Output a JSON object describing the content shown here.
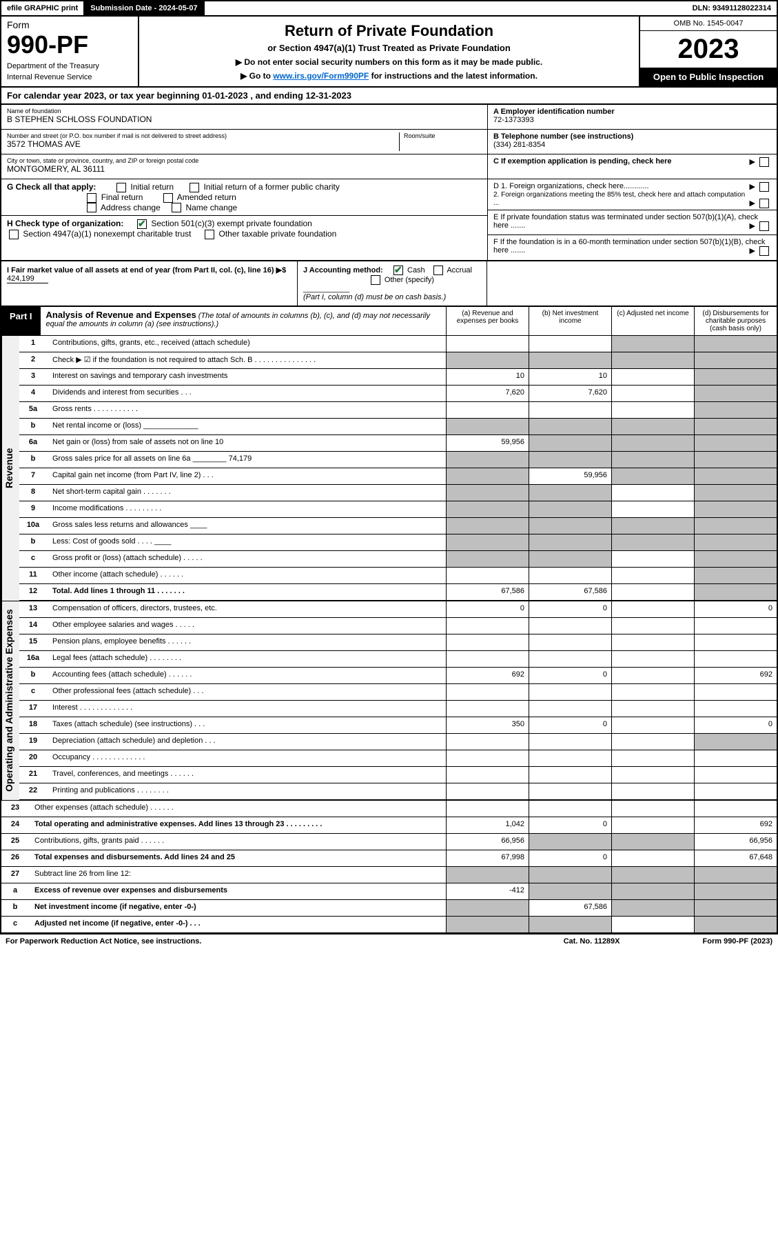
{
  "topbar": {
    "efile": "efile GRAPHIC print",
    "subdate": "Submission Date - 2024-05-07",
    "dln": "DLN: 93491128022314"
  },
  "header": {
    "form_label": "Form",
    "form_no": "990-PF",
    "dept": "Department of the Treasury",
    "irs": "Internal Revenue Service",
    "title": "Return of Private Foundation",
    "subtitle": "or Section 4947(a)(1) Trust Treated as Private Foundation",
    "note1": "▶ Do not enter social security numbers on this form as it may be made public.",
    "note2_pre": "▶ Go to ",
    "note2_link": "www.irs.gov/Form990PF",
    "note2_post": " for instructions and the latest information.",
    "omb": "OMB No. 1545-0047",
    "year": "2023",
    "open": "Open to Public Inspection"
  },
  "calyear": "For calendar year 2023, or tax year beginning 01-01-2023          , and ending 12-31-2023",
  "info": {
    "name_label": "Name of foundation",
    "name": "B STEPHEN SCHLOSS FOUNDATION",
    "addr_label": "Number and street (or P.O. box number if mail is not delivered to street address)",
    "addr": "3572 THOMAS AVE",
    "room_label": "Room/suite",
    "city_label": "City or town, state or province, country, and ZIP or foreign postal code",
    "city": "MONTGOMERY, AL  36111",
    "ein_label": "A Employer identification number",
    "ein": "72-1373393",
    "phone_label": "B Telephone number (see instructions)",
    "phone": "(334) 281-8354",
    "c_label": "C If exemption application is pending, check here",
    "d1": "D 1. Foreign organizations, check here............",
    "d2": "2. Foreign organizations meeting the 85% test, check here and attach computation ...",
    "e_label": "E  If private foundation status was terminated under section 507(b)(1)(A), check here .......",
    "f_label": "F  If the foundation is in a 60-month termination under section 507(b)(1)(B), check here .......",
    "g_label": "G Check all that apply:",
    "g_opts": [
      "Initial return",
      "Initial return of a former public charity",
      "Final return",
      "Amended return",
      "Address change",
      "Name change"
    ],
    "h_label": "H Check type of organization:",
    "h_opts": [
      "Section 501(c)(3) exempt private foundation",
      "Section 4947(a)(1) nonexempt charitable trust",
      "Other taxable private foundation"
    ],
    "i_label": "I Fair market value of all assets at end of year (from Part II, col. (c), line 16) ▶$",
    "i_val": "424,199",
    "j_label": "J Accounting method:",
    "j_opts": [
      "Cash",
      "Accrual",
      "Other (specify)"
    ],
    "j_note": "(Part I, column (d) must be on cash basis.)"
  },
  "part1": {
    "label": "Part I",
    "title": "Analysis of Revenue and Expenses",
    "desc": "(The total of amounts in columns (b), (c), and (d) may not necessarily equal the amounts in column (a) (see instructions).)",
    "cols": {
      "a": "(a) Revenue and expenses per books",
      "b": "(b) Net investment income",
      "c": "(c) Adjusted net income",
      "d": "(d) Disbursements for charitable purposes (cash basis only)"
    }
  },
  "sidelabels": {
    "revenue": "Revenue",
    "expenses": "Operating and Administrative Expenses"
  },
  "lines": [
    {
      "n": "1",
      "d": "Contributions, gifts, grants, etc., received (attach schedule)",
      "a": "",
      "b": "",
      "c": "s",
      "dcol": "s"
    },
    {
      "n": "2",
      "d": "Check ▶ ☑ if the foundation is not required to attach Sch. B   .   .   .   .   .   .   .   .   .   .   .   .   .   .   .",
      "a": "s",
      "b": "s",
      "c": "s",
      "dcol": "s"
    },
    {
      "n": "3",
      "d": "Interest on savings and temporary cash investments",
      "a": "10",
      "b": "10",
      "c": "",
      "dcol": "s"
    },
    {
      "n": "4",
      "d": "Dividends and interest from securities   .   .   .",
      "a": "7,620",
      "b": "7,620",
      "c": "",
      "dcol": "s"
    },
    {
      "n": "5a",
      "d": "Gross rents   .   .   .   .   .   .   .   .   .   .   .",
      "a": "",
      "b": "",
      "c": "",
      "dcol": "s"
    },
    {
      "n": "b",
      "d": "Net rental income or (loss)  _____________",
      "a": "s",
      "b": "s",
      "c": "s",
      "dcol": "s"
    },
    {
      "n": "6a",
      "d": "Net gain or (loss) from sale of assets not on line 10",
      "a": "59,956",
      "b": "s",
      "c": "s",
      "dcol": "s"
    },
    {
      "n": "b",
      "d": "Gross sales price for all assets on line 6a ________ 74,179",
      "a": "s",
      "b": "s",
      "c": "s",
      "dcol": "s"
    },
    {
      "n": "7",
      "d": "Capital gain net income (from Part IV, line 2)   .   .   .",
      "a": "s",
      "b": "59,956",
      "c": "s",
      "dcol": "s"
    },
    {
      "n": "8",
      "d": "Net short-term capital gain   .   .   .   .   .   .   .",
      "a": "s",
      "b": "s",
      "c": "",
      "dcol": "s"
    },
    {
      "n": "9",
      "d": "Income modifications   .   .   .   .   .   .   .   .   .",
      "a": "s",
      "b": "s",
      "c": "",
      "dcol": "s"
    },
    {
      "n": "10a",
      "d": "Gross sales less returns and allowances  ____",
      "a": "s",
      "b": "s",
      "c": "s",
      "dcol": "s"
    },
    {
      "n": "b",
      "d": "Less: Cost of goods sold   .   .   .   .  ____",
      "a": "s",
      "b": "s",
      "c": "s",
      "dcol": "s"
    },
    {
      "n": "c",
      "d": "Gross profit or (loss) (attach schedule)   .   .   .   .   .",
      "a": "s",
      "b": "s",
      "c": "",
      "dcol": "s"
    },
    {
      "n": "11",
      "d": "Other income (attach schedule)   .   .   .   .   .   .",
      "a": "",
      "b": "",
      "c": "",
      "dcol": "s"
    },
    {
      "n": "12",
      "d": "Total. Add lines 1 through 11   .   .   .   .   .   .   .",
      "a": "67,586",
      "b": "67,586",
      "c": "",
      "dcol": "s",
      "bold": true
    },
    {
      "n": "13",
      "d": "Compensation of officers, directors, trustees, etc.",
      "a": "0",
      "b": "0",
      "c": "",
      "dcol": "0"
    },
    {
      "n": "14",
      "d": "Other employee salaries and wages   .   .   .   .   .",
      "a": "",
      "b": "",
      "c": "",
      "dcol": ""
    },
    {
      "n": "15",
      "d": "Pension plans, employee benefits   .   .   .   .   .   .",
      "a": "",
      "b": "",
      "c": "",
      "dcol": ""
    },
    {
      "n": "16a",
      "d": "Legal fees (attach schedule)   .   .   .   .   .   .   .   .",
      "a": "",
      "b": "",
      "c": "",
      "dcol": ""
    },
    {
      "n": "b",
      "d": "Accounting fees (attach schedule)   .   .   .   .   .   .",
      "a": "692",
      "b": "0",
      "c": "",
      "dcol": "692"
    },
    {
      "n": "c",
      "d": "Other professional fees (attach schedule)   .   .   .",
      "a": "",
      "b": "",
      "c": "",
      "dcol": ""
    },
    {
      "n": "17",
      "d": "Interest   .   .   .   .   .   .   .   .   .   .   .   .   .",
      "a": "",
      "b": "",
      "c": "",
      "dcol": ""
    },
    {
      "n": "18",
      "d": "Taxes (attach schedule) (see instructions)   .   .   .",
      "a": "350",
      "b": "0",
      "c": "",
      "dcol": "0"
    },
    {
      "n": "19",
      "d": "Depreciation (attach schedule) and depletion   .   .   .",
      "a": "",
      "b": "",
      "c": "",
      "dcol": "s"
    },
    {
      "n": "20",
      "d": "Occupancy   .   .   .   .   .   .   .   .   .   .   .   .   .",
      "a": "",
      "b": "",
      "c": "",
      "dcol": ""
    },
    {
      "n": "21",
      "d": "Travel, conferences, and meetings   .   .   .   .   .   .",
      "a": "",
      "b": "",
      "c": "",
      "dcol": ""
    },
    {
      "n": "22",
      "d": "Printing and publications   .   .   .   .   .   .   .   .",
      "a": "",
      "b": "",
      "c": "",
      "dcol": ""
    },
    {
      "n": "23",
      "d": "Other expenses (attach schedule)   .   .   .   .   .   .",
      "a": "",
      "b": "",
      "c": "",
      "dcol": ""
    },
    {
      "n": "24",
      "d": "Total operating and administrative expenses. Add lines 13 through 23   .   .   .   .   .   .   .   .   .",
      "a": "1,042",
      "b": "0",
      "c": "",
      "dcol": "692",
      "bold": true
    },
    {
      "n": "25",
      "d": "Contributions, gifts, grants paid   .   .   .   .   .   .",
      "a": "66,956",
      "b": "s",
      "c": "s",
      "dcol": "66,956"
    },
    {
      "n": "26",
      "d": "Total expenses and disbursements. Add lines 24 and 25",
      "a": "67,998",
      "b": "0",
      "c": "",
      "dcol": "67,648",
      "bold": true
    },
    {
      "n": "27",
      "d": "Subtract line 26 from line 12:",
      "a": "s",
      "b": "s",
      "c": "s",
      "dcol": "s"
    },
    {
      "n": "a",
      "d": "Excess of revenue over expenses and disbursements",
      "a": "-412",
      "b": "s",
      "c": "s",
      "dcol": "s",
      "bold": true
    },
    {
      "n": "b",
      "d": "Net investment income (if negative, enter -0-)",
      "a": "s",
      "b": "67,586",
      "c": "s",
      "dcol": "s",
      "bold": true
    },
    {
      "n": "c",
      "d": "Adjusted net income (if negative, enter -0-)   .   .   .",
      "a": "s",
      "b": "s",
      "c": "",
      "dcol": "s",
      "bold": true
    }
  ],
  "footer": {
    "left": "For Paperwork Reduction Act Notice, see instructions.",
    "mid": "Cat. No. 11289X",
    "right": "Form 990-PF (2023)"
  }
}
